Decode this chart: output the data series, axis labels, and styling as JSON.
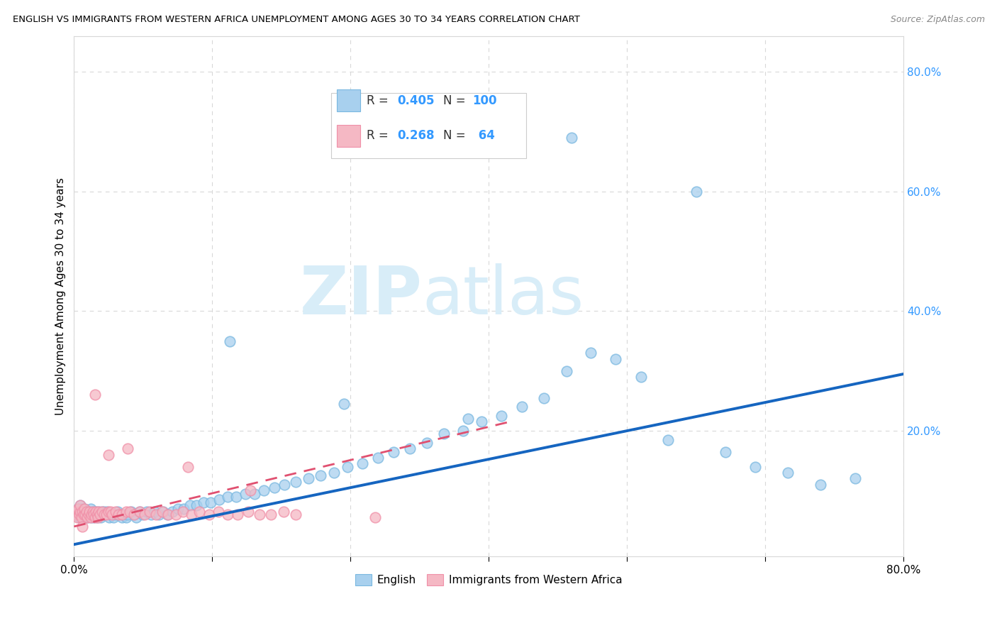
{
  "title": "ENGLISH VS IMMIGRANTS FROM WESTERN AFRICA UNEMPLOYMENT AMONG AGES 30 TO 34 YEARS CORRELATION CHART",
  "source": "Source: ZipAtlas.com",
  "ylabel": "Unemployment Among Ages 30 to 34 years",
  "xlim": [
    0,
    0.8
  ],
  "ylim": [
    -0.01,
    0.86
  ],
  "yticks_right": [
    0.0,
    0.2,
    0.4,
    0.6,
    0.8
  ],
  "ytick_right_labels": [
    "",
    "20.0%",
    "40.0%",
    "60.0%",
    "80.0%"
  ],
  "color_english": "#a8d0ee",
  "color_immigrant": "#f5b8c4",
  "color_english_edge": "#7ab8e0",
  "color_immigrant_edge": "#f090a8",
  "color_english_line": "#1565c0",
  "color_immigrant_line": "#e05070",
  "color_text_blue": "#3399ff",
  "color_axis_right": "#3399ff",
  "background_color": "#ffffff",
  "watermark_color": "#d8edf8",
  "grid_color": "#d8d8d8",
  "eng_r": "0.405",
  "eng_n": "100",
  "imm_r": "0.268",
  "imm_n": "64",
  "trend_english_x0": 0.0,
  "trend_english_y0": 0.01,
  "trend_english_x1": 0.8,
  "trend_english_y1": 0.295,
  "trend_immigrant_x0": 0.0,
  "trend_immigrant_y0": 0.04,
  "trend_immigrant_x1": 0.42,
  "trend_immigrant_y1": 0.215
}
